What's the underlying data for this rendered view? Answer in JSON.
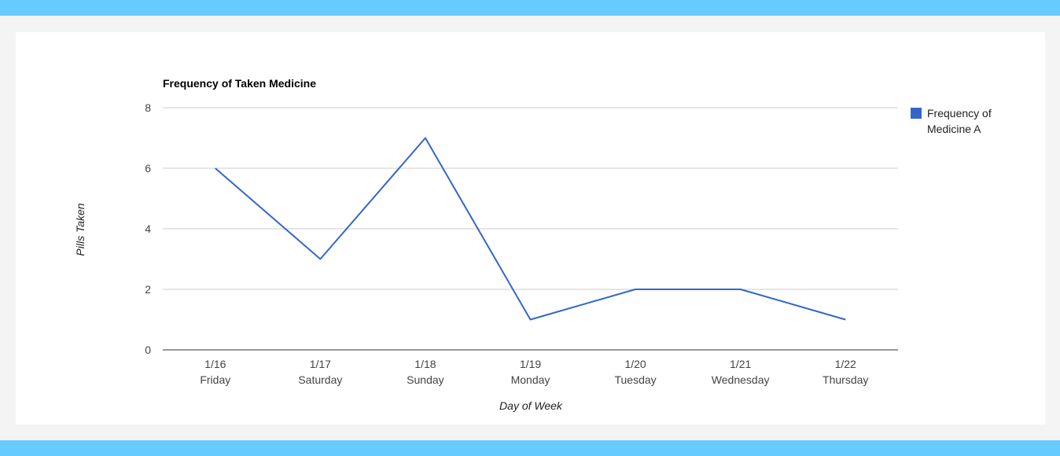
{
  "chart_data": {
    "type": "line",
    "title": "Frequency of Taken Medicine",
    "xlabel": "Day of Week",
    "ylabel": "Pills Taken",
    "categories": [
      [
        "1/16",
        "Friday"
      ],
      [
        "1/17",
        "Saturday"
      ],
      [
        "1/18",
        "Sunday"
      ],
      [
        "1/19",
        "Monday"
      ],
      [
        "1/20",
        "Tuesday"
      ],
      [
        "1/21",
        "Wednesday"
      ],
      [
        "1/22",
        "Thursday"
      ]
    ],
    "series": [
      {
        "name": "Frequency of Medicine A",
        "legend_lines": [
          "Frequency of",
          "Medicine A"
        ],
        "color": "#3366cc",
        "values": [
          6,
          3,
          7,
          1,
          2,
          2,
          1
        ]
      }
    ],
    "ylim": [
      0,
      8
    ],
    "yticks": [
      "0",
      "2",
      "4",
      "6",
      "8"
    ],
    "grid": true,
    "legend_position": "right"
  },
  "colors": {
    "banner": "#66ccff",
    "gridline": "#cccccc",
    "baseline": "#333333"
  }
}
